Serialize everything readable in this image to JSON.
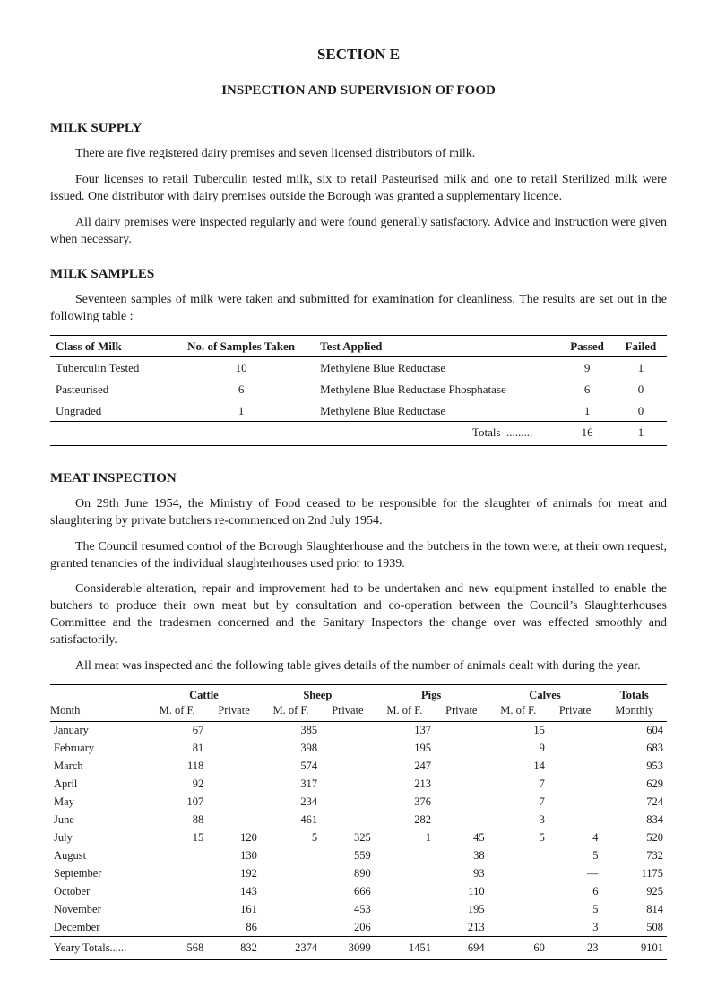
{
  "section_title": "SECTION E",
  "section_subtitle": "INSPECTION AND SUPERVISION OF FOOD",
  "milk_supply": {
    "heading": "MILK SUPPLY",
    "para1": "There are five registered dairy premises and seven licensed distributors of milk.",
    "para2": "Four licenses to retail Tuberculin tested milk, six to retail Pasteurised milk and one to retail Sterilized milk were issued. One distributor with dairy premises outside the Borough was granted a supplementary licence.",
    "para3": "All dairy premises were inspected regularly and were found generally satisfactory. Advice and instruction were given when necessary."
  },
  "milk_samples": {
    "heading": "MILK SAMPLES",
    "para1": "Seventeen samples of milk were taken and submitted for examination for cleanliness. The results are set out in the following table :",
    "table": {
      "headers": {
        "class": "Class of Milk",
        "no_taken": "No. of Samples Taken",
        "test": "Test Applied",
        "passed": "Passed",
        "failed": "Failed"
      },
      "rows": [
        {
          "class": "Tuberculin Tested",
          "no": "10",
          "test": "Methylene Blue Reductase",
          "passed": "9",
          "failed": "1"
        },
        {
          "class": "Pasteurised",
          "no": "6",
          "test": "Methylene Blue Reductase Phosphatase",
          "passed": "6",
          "failed": "0"
        },
        {
          "class": "Ungraded",
          "no": "1",
          "test": "Methylene Blue Reductase",
          "passed": "1",
          "failed": "0"
        }
      ],
      "totals": {
        "label": "Totals",
        "passed": "16",
        "failed": "1"
      }
    }
  },
  "meat_inspection": {
    "heading": "MEAT INSPECTION",
    "para1": "On 29th June 1954, the Ministry of Food ceased to be responsible for the slaughter of animals for meat and slaughtering by private butchers re-commenced on 2nd July 1954.",
    "para2": "The Council resumed control of the Borough Slaughterhouse and the butchers in the town were, at their own request, granted tenancies of the individual slaughterhouses used prior to 1939.",
    "para3": "Considerable alteration, repair and improvement had to be undertaken and new equipment installed to enable the butchers to produce their own meat but by consultation and co-operation between the Council’s Slaughterhouses Committee and the tradesmen concerned and the Sanitary Inspectors the change over was effected smoothly and satisfactorily.",
    "para4": "All meat was inspected and the following table gives details of the number of animals dealt with during the year.",
    "table": {
      "col_groups": [
        "Cattle",
        "Sheep",
        "Pigs",
        "Calves",
        "Totals"
      ],
      "sub_headers": {
        "month": "Month",
        "mof": "M. of F.",
        "priv": "Private",
        "monthly": "Monthly"
      },
      "rows_h1": [
        {
          "month": "January",
          "c_m": "67",
          "c_p": "",
          "s_m": "385",
          "s_p": "",
          "p_m": "137",
          "p_p": "",
          "v_m": "15",
          "v_p": "",
          "total": "604"
        },
        {
          "month": "February",
          "c_m": "81",
          "c_p": "",
          "s_m": "398",
          "s_p": "",
          "p_m": "195",
          "p_p": "",
          "v_m": "9",
          "v_p": "",
          "total": "683"
        },
        {
          "month": "March",
          "c_m": "118",
          "c_p": "",
          "s_m": "574",
          "s_p": "",
          "p_m": "247",
          "p_p": "",
          "v_m": "14",
          "v_p": "",
          "total": "953"
        },
        {
          "month": "April",
          "c_m": "92",
          "c_p": "",
          "s_m": "317",
          "s_p": "",
          "p_m": "213",
          "p_p": "",
          "v_m": "7",
          "v_p": "",
          "total": "629"
        },
        {
          "month": "May",
          "c_m": "107",
          "c_p": "",
          "s_m": "234",
          "s_p": "",
          "p_m": "376",
          "p_p": "",
          "v_m": "7",
          "v_p": "",
          "total": "724"
        },
        {
          "month": "June",
          "c_m": "88",
          "c_p": "",
          "s_m": "461",
          "s_p": "",
          "p_m": "282",
          "p_p": "",
          "v_m": "3",
          "v_p": "",
          "total": "834"
        }
      ],
      "rows_h2": [
        {
          "month": "July",
          "c_m": "15",
          "c_p": "120",
          "s_m": "5",
          "s_p": "325",
          "p_m": "1",
          "p_p": "45",
          "v_m": "5",
          "v_p": "4",
          "total": "520"
        },
        {
          "month": "August",
          "c_m": "",
          "c_p": "130",
          "s_m": "",
          "s_p": "559",
          "p_m": "",
          "p_p": "38",
          "v_m": "",
          "v_p": "5",
          "total": "732"
        },
        {
          "month": "September",
          "c_m": "",
          "c_p": "192",
          "s_m": "",
          "s_p": "890",
          "p_m": "",
          "p_p": "93",
          "v_m": "",
          "v_p": "—",
          "total": "1175"
        },
        {
          "month": "October",
          "c_m": "",
          "c_p": "143",
          "s_m": "",
          "s_p": "666",
          "p_m": "",
          "p_p": "110",
          "v_m": "",
          "v_p": "6",
          "total": "925"
        },
        {
          "month": "November",
          "c_m": "",
          "c_p": "161",
          "s_m": "",
          "s_p": "453",
          "p_m": "",
          "p_p": "195",
          "v_m": "",
          "v_p": "5",
          "total": "814"
        },
        {
          "month": "December",
          "c_m": "",
          "c_p": "86",
          "s_m": "",
          "s_p": "206",
          "p_m": "",
          "p_p": "213",
          "v_m": "",
          "v_p": "3",
          "total": "508"
        }
      ],
      "totals": {
        "label": "Yeary Totals......",
        "c_m": "568",
        "c_p": "832",
        "s_m": "2374",
        "s_p": "3099",
        "p_m": "1451",
        "p_p": "694",
        "v_m": "60",
        "v_p": "23",
        "total": "9101"
      }
    }
  }
}
